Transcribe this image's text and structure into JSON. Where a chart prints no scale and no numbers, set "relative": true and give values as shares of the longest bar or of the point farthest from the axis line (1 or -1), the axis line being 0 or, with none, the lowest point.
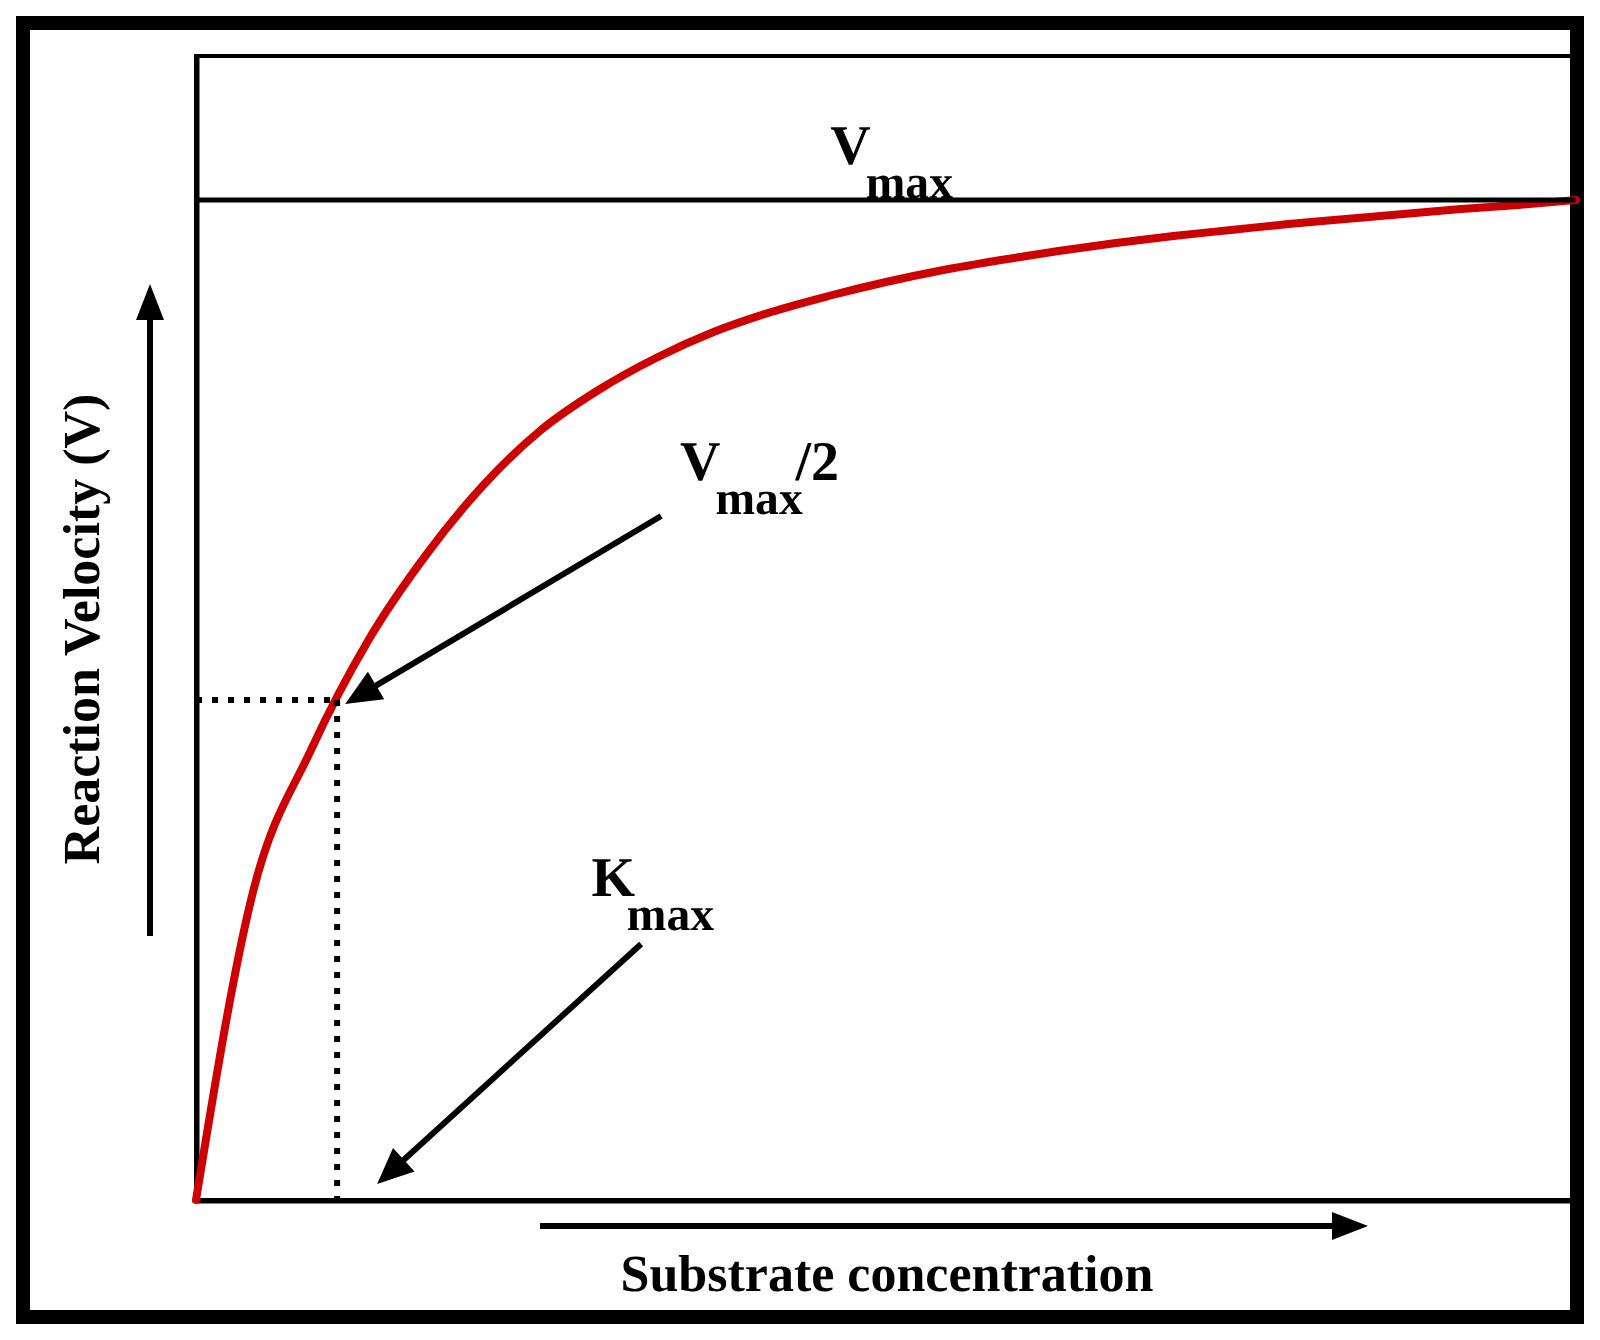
{
  "chart_data": {
    "type": "line",
    "relative": true,
    "categories": [
      null,
      null,
      null,
      null,
      null,
      null,
      null,
      null,
      null,
      null,
      null,
      null,
      null,
      null,
      null,
      null,
      null,
      null,
      null,
      null,
      null,
      null,
      null,
      null,
      null
    ],
    "series": [
      {
        "color": "#cc0000",
        "values": [
          0,
          0.31,
          0.45,
          0.56,
          0.645,
          0.715,
          0.77,
          0.81,
          0.842,
          0.868,
          0.888,
          0.904,
          0.918,
          0.93,
          0.94,
          0.949,
          0.957,
          0.964,
          0.97,
          0.976,
          0.981,
          0.986,
          0.991,
          0.995,
          1
        ]
      }
    ],
    "xlabel": "Substrate concentration",
    "ylabel": "Reaction Velocity (V)",
    "tick_labels": false,
    "marker": "none",
    "line_style": "solid",
    "ref_lines": [
      {
        "axis": "y",
        "value": 1,
        "label": "V$_{max}$",
        "color": "#000000",
        "line_style": "solid"
      },
      {
        "axis": "y",
        "value": 0.5,
        "color": "#000000",
        "line_style": "dotted"
      }
    ],
    "annotations": [
      "V$_{max}$/2",
      "K$_{max}$"
    ]
  }
}
